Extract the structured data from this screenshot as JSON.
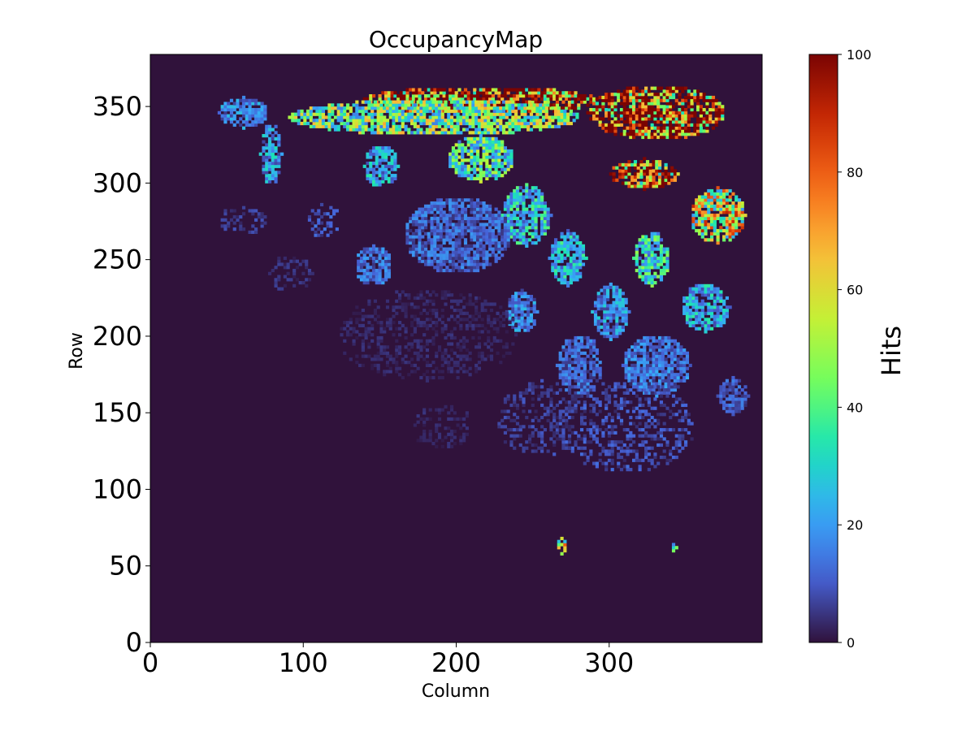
{
  "chart_data": {
    "type": "heatmap",
    "title": "OccupancyMap",
    "xlabel": "Column",
    "ylabel": "Row",
    "xlim": [
      0,
      400
    ],
    "ylim": [
      0,
      384
    ],
    "x_ticks": [
      0,
      100,
      200,
      300
    ],
    "y_ticks": [
      0,
      50,
      100,
      150,
      200,
      250,
      300,
      350
    ],
    "colorbar": {
      "label": "Hits",
      "range": [
        0,
        100
      ],
      "ticks": [
        0,
        20,
        40,
        60,
        80,
        100
      ],
      "colormap": "turbo",
      "stops": [
        "#30123b",
        "#4662d7",
        "#36aaf9",
        "#1ae4b6",
        "#72fe5e",
        "#c8ef34",
        "#faba39",
        "#f66b19",
        "#ca2a04",
        "#7a0403"
      ]
    },
    "background_value": 0,
    "regions": [
      {
        "cx": 215,
        "cy": 353,
        "rx": 78,
        "ry": 9,
        "level": 88
      },
      {
        "cx": 185,
        "cy": 342,
        "rx": 95,
        "ry": 12,
        "level": 42
      },
      {
        "cx": 330,
        "cy": 345,
        "rx": 45,
        "ry": 18,
        "level": 85
      },
      {
        "cx": 322,
        "cy": 305,
        "rx": 22,
        "ry": 10,
        "level": 80
      },
      {
        "cx": 215,
        "cy": 315,
        "rx": 22,
        "ry": 15,
        "level": 36
      },
      {
        "cx": 150,
        "cy": 310,
        "rx": 11,
        "ry": 14,
        "level": 22
      },
      {
        "cx": 78,
        "cy": 318,
        "rx": 7,
        "ry": 20,
        "level": 20
      },
      {
        "cx": 60,
        "cy": 345,
        "rx": 16,
        "ry": 10,
        "level": 16
      },
      {
        "cx": 370,
        "cy": 278,
        "rx": 18,
        "ry": 18,
        "level": 55
      },
      {
        "cx": 245,
        "cy": 278,
        "rx": 16,
        "ry": 20,
        "level": 26
      },
      {
        "cx": 200,
        "cy": 265,
        "rx": 35,
        "ry": 25,
        "level": 12
      },
      {
        "cx": 272,
        "cy": 250,
        "rx": 12,
        "ry": 18,
        "level": 24
      },
      {
        "cx": 327,
        "cy": 250,
        "rx": 12,
        "ry": 18,
        "level": 30
      },
      {
        "cx": 300,
        "cy": 215,
        "rx": 12,
        "ry": 18,
        "level": 18
      },
      {
        "cx": 362,
        "cy": 218,
        "rx": 16,
        "ry": 16,
        "level": 22
      },
      {
        "cx": 242,
        "cy": 215,
        "rx": 10,
        "ry": 14,
        "level": 16
      },
      {
        "cx": 145,
        "cy": 245,
        "rx": 12,
        "ry": 13,
        "level": 13
      },
      {
        "cx": 112,
        "cy": 275,
        "rx": 11,
        "ry": 12,
        "level": 9
      },
      {
        "cx": 60,
        "cy": 275,
        "rx": 16,
        "ry": 10,
        "level": 6
      },
      {
        "cx": 280,
        "cy": 180,
        "rx": 15,
        "ry": 20,
        "level": 12
      },
      {
        "cx": 330,
        "cy": 180,
        "rx": 22,
        "ry": 20,
        "level": 14
      },
      {
        "cx": 310,
        "cy": 140,
        "rx": 45,
        "ry": 30,
        "level": 8
      },
      {
        "cx": 255,
        "cy": 145,
        "rx": 30,
        "ry": 25,
        "level": 6
      },
      {
        "cx": 380,
        "cy": 160,
        "rx": 10,
        "ry": 12,
        "level": 10
      },
      {
        "cx": 90,
        "cy": 240,
        "rx": 15,
        "ry": 12,
        "level": 4
      },
      {
        "cx": 180,
        "cy": 200,
        "rx": 60,
        "ry": 30,
        "level": 3
      },
      {
        "cx": 190,
        "cy": 140,
        "rx": 20,
        "ry": 15,
        "level": 3
      },
      {
        "cx": 268,
        "cy": 62,
        "rx": 4,
        "ry": 5,
        "level": 50
      },
      {
        "cx": 341,
        "cy": 61,
        "rx": 2,
        "ry": 2,
        "level": 30
      }
    ]
  }
}
